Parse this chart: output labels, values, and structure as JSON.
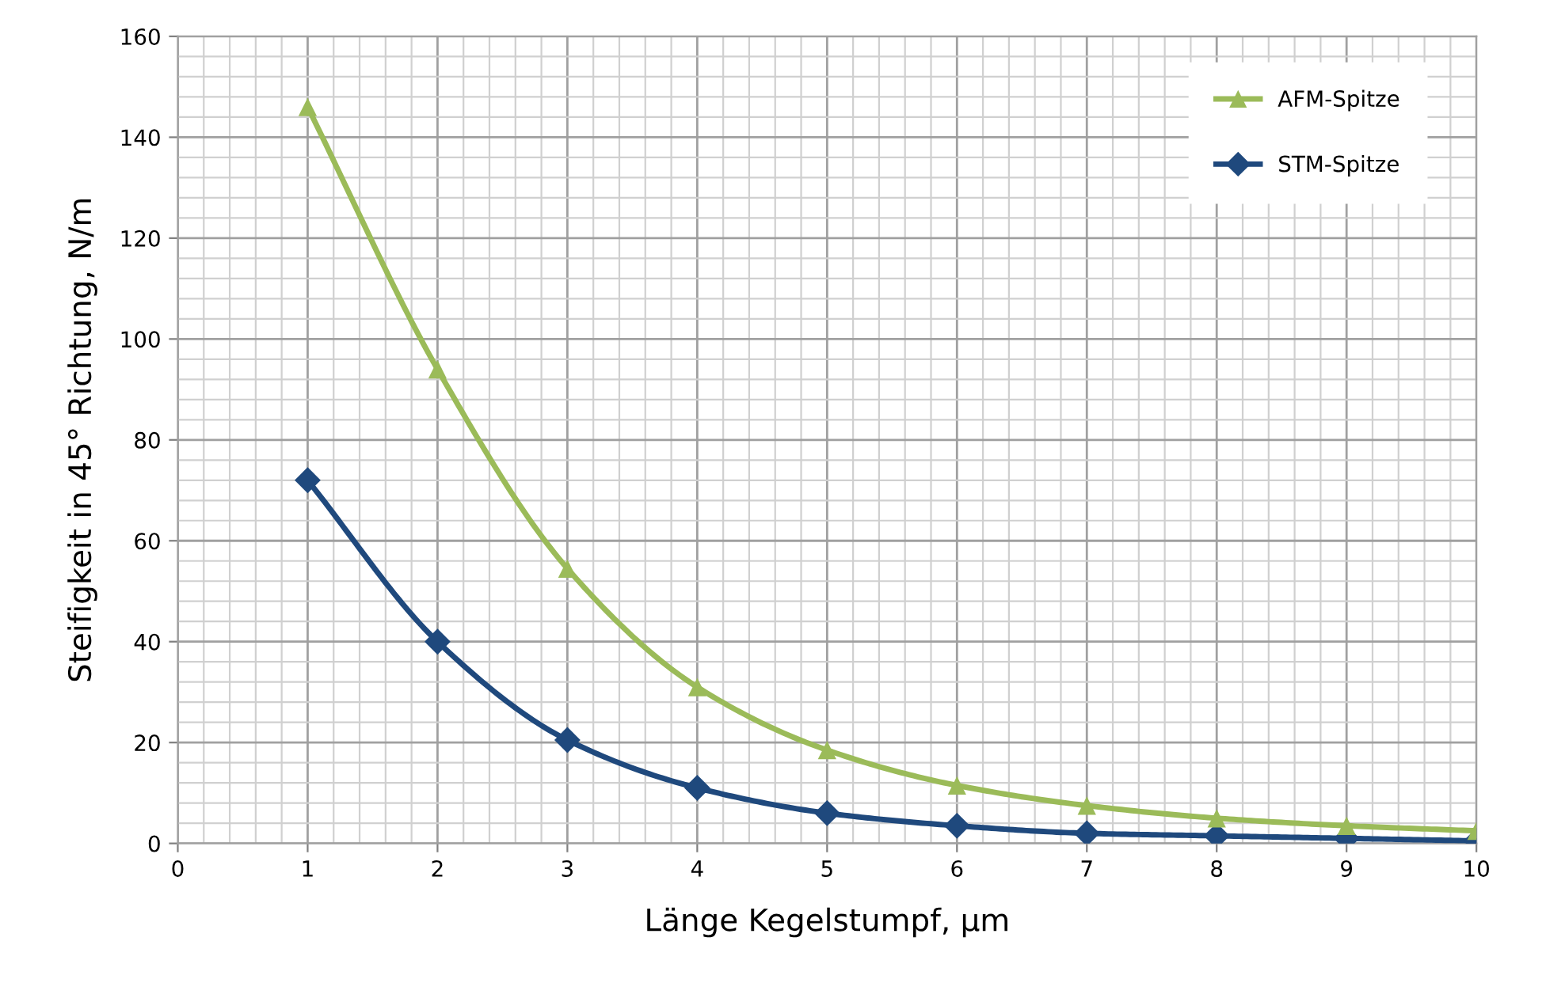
{
  "chart_data": {
    "type": "line",
    "xlabel": "Länge Kegelstumpf, µm",
    "ylabel": "Steifigkeit in 45° Richtung, N/m",
    "x": [
      1,
      2,
      3,
      4,
      5,
      6,
      7,
      8,
      9,
      10
    ],
    "series": [
      {
        "name": "AFM-Spitze",
        "color": "#9bbb59",
        "marker": "triangle",
        "values": [
          146,
          94,
          54.5,
          31,
          18.5,
          11.5,
          7.5,
          5,
          3.5,
          2.5
        ]
      },
      {
        "name": "STM-Spitze",
        "color": "#1f497d",
        "marker": "diamond",
        "values": [
          72,
          40,
          20.5,
          11,
          6,
          3.5,
          2,
          1.5,
          1,
          0.5
        ]
      }
    ],
    "xlim": [
      0,
      10
    ],
    "xticks": [
      0,
      1,
      2,
      3,
      4,
      5,
      6,
      7,
      8,
      9,
      10
    ],
    "ylim": [
      0,
      160
    ],
    "yticks": [
      0,
      20,
      40,
      60,
      80,
      100,
      120,
      140,
      160
    ],
    "grid": true,
    "legend": "top right",
    "line_style": "solid"
  }
}
